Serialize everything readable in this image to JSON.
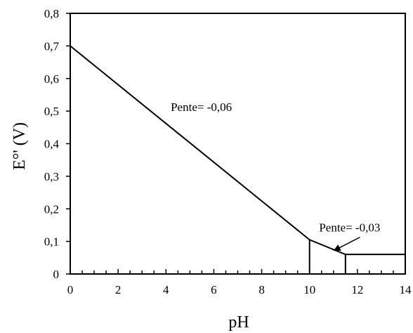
{
  "chart_data": {
    "type": "line",
    "xlabel": "pH",
    "ylabel": "E°' (V)",
    "xlim": [
      0,
      14
    ],
    "ylim": [
      0,
      0.8
    ],
    "x_ticks": [
      "0",
      "2",
      "4",
      "6",
      "8",
      "10",
      "12",
      "14"
    ],
    "y_ticks": [
      "0",
      "0,1",
      "0,2",
      "0,3",
      "0,4",
      "0,5",
      "0,6",
      "0,7",
      "0,8"
    ],
    "x_minor_step": 0.5,
    "grid": false,
    "series": [
      {
        "x": [
          0,
          10,
          11.5,
          14
        ],
        "y": [
          0.7,
          0.105,
          0.06,
          0.06
        ]
      }
    ],
    "boundaries": [
      {
        "x": 10,
        "y_top": 0.105
      },
      {
        "x": 11.5,
        "y_top": 0.06
      }
    ],
    "annotations": [
      {
        "text": "Pente= -0,06",
        "x": 4.2,
        "y": 0.5
      },
      {
        "text": "Pente= -0,03",
        "x": 10.4,
        "y": 0.13,
        "arrow_to": [
          11.05,
          0.073
        ]
      }
    ]
  }
}
